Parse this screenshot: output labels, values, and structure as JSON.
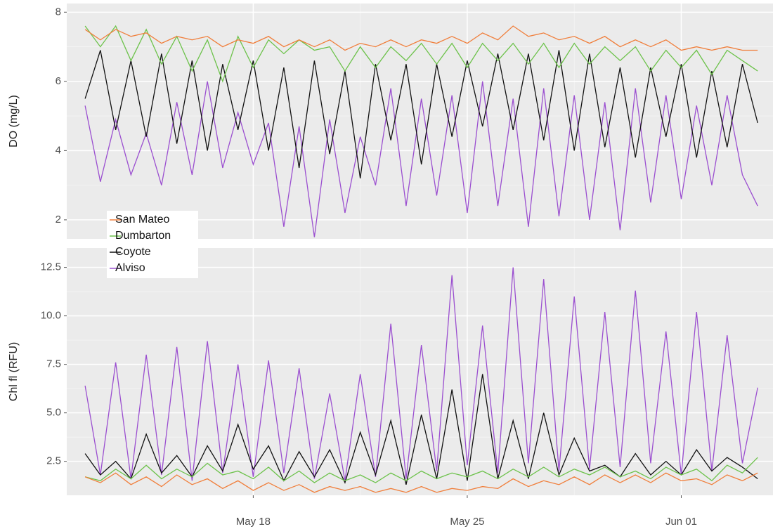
{
  "chart_data": [
    {
      "type": "line",
      "ylabel": "DO (mg/L)",
      "x": [
        12.5,
        13,
        13.5,
        14,
        14.5,
        15,
        15.5,
        16,
        16.5,
        17,
        17.5,
        18,
        18.5,
        19,
        19.5,
        20,
        20.5,
        21,
        21.5,
        22,
        22.5,
        23,
        23.5,
        24,
        24.5,
        25,
        25.5,
        26,
        26.5,
        27,
        27.5,
        28,
        28.5,
        29,
        29.5,
        30,
        30.5,
        31,
        31.5,
        32,
        32.5,
        33,
        33.5,
        34,
        34.5
      ],
      "xlim": [
        11.9,
        35
      ],
      "xticks": [
        18,
        25,
        32
      ],
      "ylim": [
        1.45,
        8.25
      ],
      "yticks": [
        2,
        4,
        6,
        8
      ],
      "grid": true,
      "legend": "bottom-left",
      "series": [
        {
          "name": "San Mateo",
          "color": "#f07f3c",
          "values": [
            7.5,
            7.2,
            7.5,
            7.3,
            7.4,
            7.1,
            7.3,
            7.2,
            7.3,
            7.0,
            7.2,
            7.1,
            7.3,
            7.0,
            7.2,
            7.0,
            7.2,
            6.9,
            7.1,
            7.0,
            7.2,
            7.0,
            7.2,
            7.1,
            7.3,
            7.1,
            7.4,
            7.2,
            7.6,
            7.3,
            7.4,
            7.2,
            7.3,
            7.1,
            7.3,
            7.0,
            7.2,
            7.0,
            7.2,
            6.9,
            7.0,
            6.9,
            7.0,
            6.9,
            6.9
          ]
        },
        {
          "name": "Dumbarton",
          "color": "#6cc24a",
          "values": [
            7.6,
            7.0,
            7.6,
            6.6,
            7.5,
            6.5,
            7.3,
            6.3,
            7.2,
            6.0,
            7.3,
            6.4,
            7.2,
            6.8,
            7.2,
            6.9,
            7.0,
            6.3,
            7.0,
            6.4,
            7.0,
            6.6,
            7.1,
            6.5,
            7.1,
            6.4,
            7.1,
            6.6,
            7.1,
            6.5,
            7.1,
            6.4,
            7.1,
            6.5,
            7.0,
            6.6,
            7.0,
            6.3,
            6.9,
            6.4,
            6.9,
            6.2,
            6.9,
            6.6,
            6.3
          ]
        },
        {
          "name": "Coyote",
          "color": "#111111",
          "values": [
            5.5,
            6.9,
            4.6,
            6.6,
            4.4,
            6.8,
            4.2,
            6.6,
            4.0,
            6.5,
            4.6,
            6.6,
            4.0,
            6.4,
            3.5,
            6.6,
            3.9,
            6.3,
            3.2,
            6.5,
            4.3,
            6.5,
            3.6,
            6.5,
            4.4,
            6.6,
            4.7,
            6.8,
            4.6,
            6.8,
            4.3,
            6.9,
            4.0,
            6.8,
            4.1,
            6.4,
            3.8,
            6.4,
            4.4,
            6.5,
            3.8,
            6.3,
            4.1,
            6.5,
            4.8
          ]
        },
        {
          "name": "Alviso",
          "color": "#9b4fd0",
          "values": [
            5.3,
            3.1,
            4.9,
            3.3,
            4.5,
            3.0,
            5.4,
            3.3,
            6.0,
            3.5,
            5.1,
            3.6,
            4.8,
            1.8,
            4.7,
            1.5,
            4.9,
            2.2,
            4.4,
            3.0,
            5.8,
            2.4,
            5.5,
            2.7,
            5.6,
            2.2,
            6.0,
            2.4,
            5.5,
            1.8,
            5.8,
            2.1,
            5.6,
            2.0,
            5.4,
            1.7,
            5.8,
            2.5,
            5.6,
            2.6,
            5.3,
            3.0,
            5.6,
            3.3,
            2.4
          ]
        }
      ]
    },
    {
      "type": "line",
      "ylabel": "Chl fl   (RFU)",
      "x": [
        12.5,
        13,
        13.5,
        14,
        14.5,
        15,
        15.5,
        16,
        16.5,
        17,
        17.5,
        18,
        18.5,
        19,
        19.5,
        20,
        20.5,
        21,
        21.5,
        22,
        22.5,
        23,
        23.5,
        24,
        24.5,
        25,
        25.5,
        26,
        26.5,
        27,
        27.5,
        28,
        28.5,
        29,
        29.5,
        30,
        30.5,
        31,
        31.5,
        32,
        32.5,
        33,
        33.5,
        34,
        34.5
      ],
      "xlim": [
        11.9,
        35
      ],
      "xticks": [
        {
          "value": 18,
          "label": "May 18"
        },
        {
          "value": 25,
          "label": "May 25"
        },
        {
          "value": 32,
          "label": "Jun 01"
        }
      ],
      "ylim": [
        0.75,
        13.5
      ],
      "yticks": [
        2.5,
        {
          "value": 5,
          "label": "5.0"
        },
        7.5,
        {
          "value": 10,
          "label": "10.0"
        },
        12.5
      ],
      "grid": true,
      "series": [
        {
          "color": "#f07f3c",
          "values": [
            1.7,
            1.4,
            1.9,
            1.3,
            1.7,
            1.2,
            1.8,
            1.3,
            1.6,
            1.1,
            1.5,
            1.0,
            1.4,
            1.0,
            1.3,
            0.9,
            1.2,
            1.0,
            1.2,
            0.9,
            1.1,
            0.9,
            1.2,
            0.9,
            1.1,
            1.0,
            1.2,
            1.1,
            1.6,
            1.2,
            1.5,
            1.3,
            1.7,
            1.3,
            1.8,
            1.4,
            1.8,
            1.4,
            1.9,
            1.5,
            1.6,
            1.3,
            1.8,
            1.5,
            1.9
          ]
        },
        {
          "color": "#6cc24a",
          "values": [
            1.7,
            1.5,
            2.1,
            1.6,
            2.3,
            1.6,
            2.1,
            1.7,
            2.4,
            1.8,
            2.0,
            1.6,
            2.2,
            1.5,
            2.0,
            1.4,
            1.9,
            1.5,
            1.8,
            1.4,
            1.9,
            1.5,
            2.0,
            1.6,
            1.9,
            1.7,
            2.0,
            1.6,
            2.1,
            1.7,
            2.2,
            1.7,
            2.1,
            1.8,
            2.2,
            1.7,
            2.0,
            1.6,
            2.2,
            1.8,
            2.1,
            1.5,
            2.3,
            1.9,
            2.7
          ]
        },
        {
          "color": "#111111",
          "values": [
            2.9,
            1.8,
            2.5,
            1.6,
            3.9,
            1.9,
            2.8,
            1.7,
            3.3,
            2.0,
            4.4,
            2.1,
            3.3,
            1.5,
            3.0,
            1.7,
            3.1,
            1.4,
            4.0,
            1.8,
            4.6,
            1.3,
            4.9,
            1.6,
            6.2,
            1.5,
            7.0,
            1.6,
            4.6,
            1.6,
            5.0,
            1.8,
            3.7,
            2.0,
            2.3,
            1.7,
            2.9,
            1.8,
            2.5,
            1.8,
            3.1,
            2.0,
            2.7,
            2.2,
            1.6
          ]
        },
        {
          "color": "#9b4fd0",
          "values": [
            6.4,
            1.8,
            7.6,
            1.6,
            8.0,
            1.8,
            8.4,
            1.5,
            8.7,
            1.9,
            7.5,
            1.7,
            7.7,
            1.9,
            7.3,
            1.6,
            6.0,
            1.5,
            7.0,
            1.7,
            9.6,
            1.6,
            8.5,
            2.0,
            12.1,
            2.3,
            9.5,
            1.9,
            12.5,
            2.4,
            11.9,
            2.0,
            11.0,
            2.1,
            10.2,
            2.2,
            11.3,
            2.4,
            9.2,
            1.8,
            10.2,
            2.0,
            9.0,
            2.4,
            6.3
          ]
        }
      ]
    }
  ]
}
